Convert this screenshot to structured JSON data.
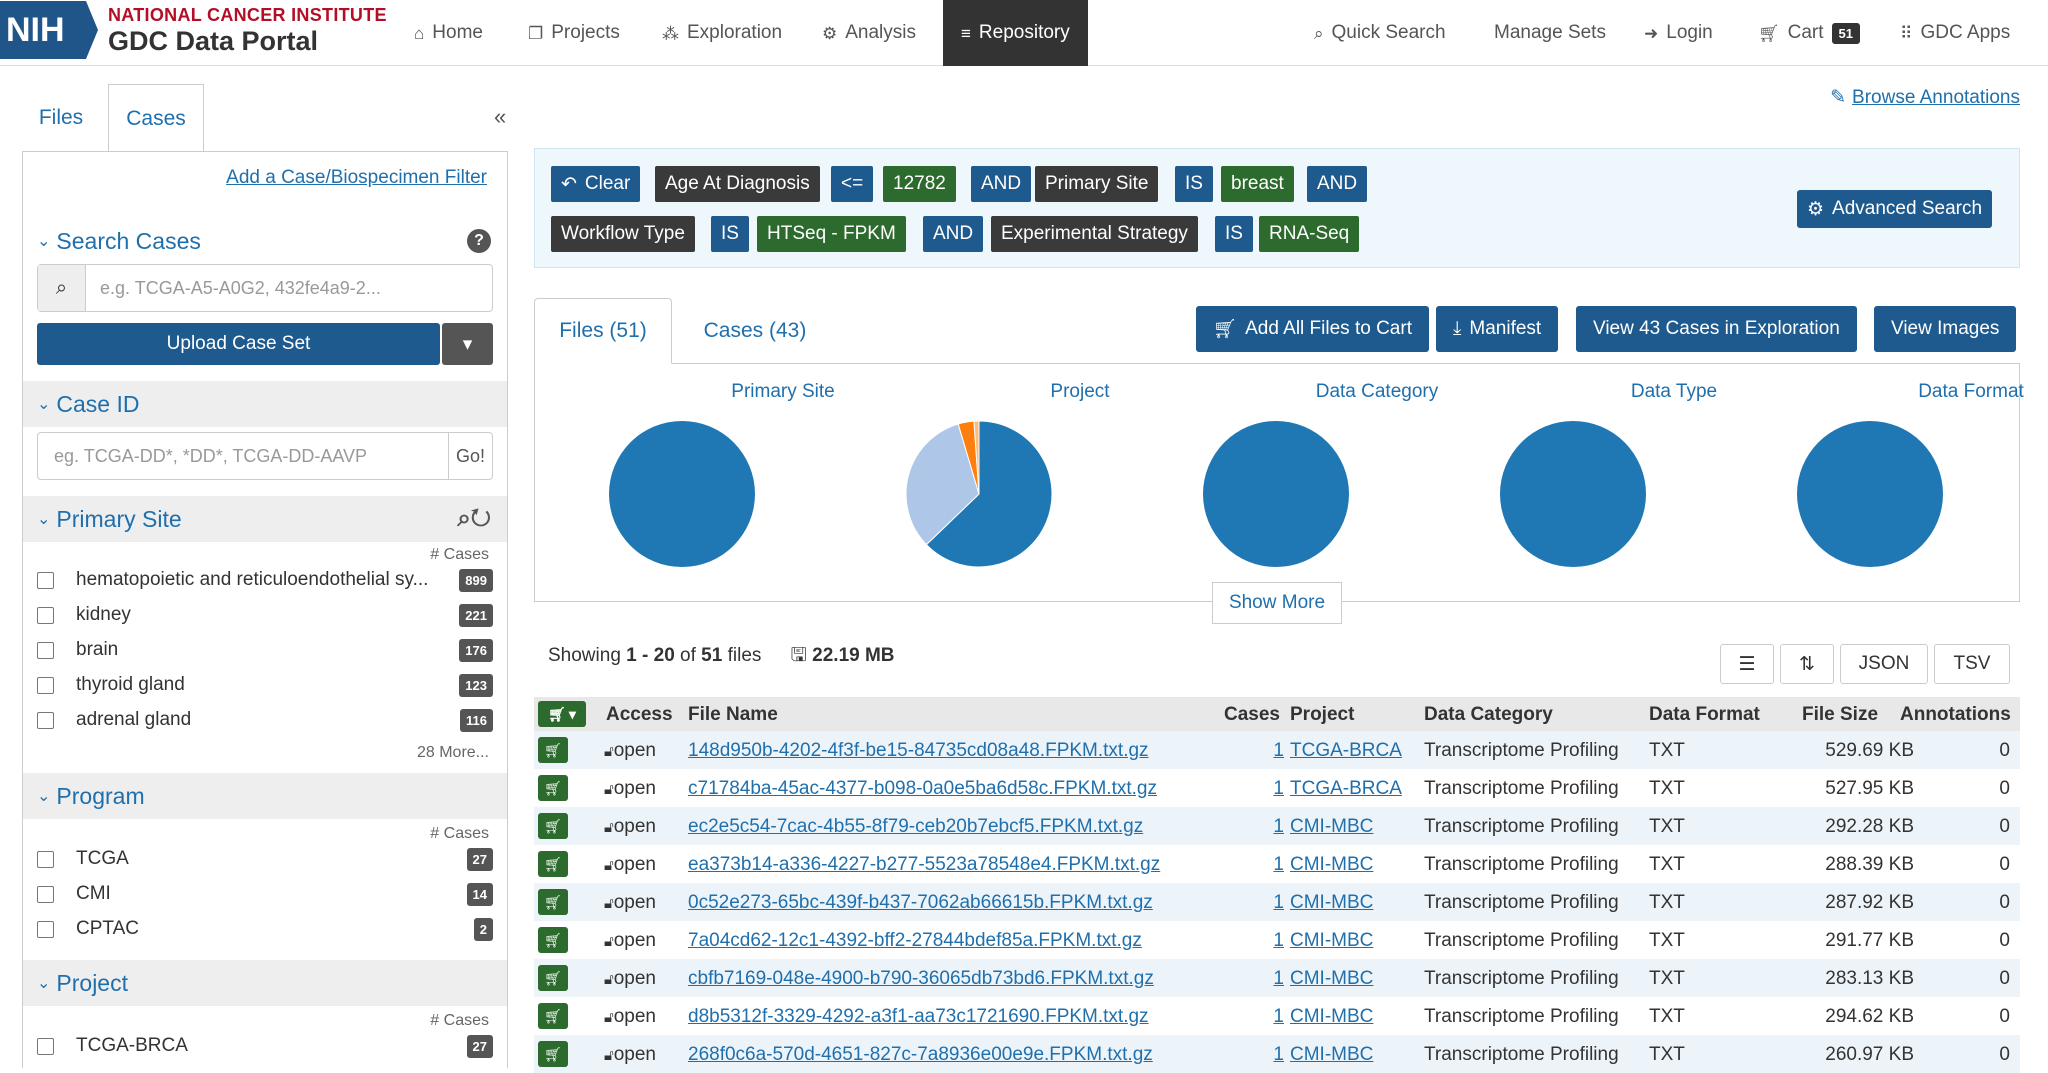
{
  "header": {
    "nci": "NATIONAL CANCER INSTITUTE",
    "gdc": "GDC Data Portal",
    "nih": "NIH",
    "nav": [
      "Home",
      "Projects",
      "Exploration",
      "Analysis",
      "Repository"
    ],
    "right": [
      "Quick Search",
      "Manage Sets",
      "Login",
      "Cart",
      "GDC Apps"
    ],
    "cart_count": "51"
  },
  "sidebar": {
    "tabs": [
      "Files",
      "Cases"
    ],
    "collapse": "«",
    "add_filter": "Add a Case/Biospecimen Filter",
    "search_title": "Search Cases",
    "search_placeholder": "e.g. TCGA-A5-A0G2, 432fe4a9-2...",
    "upload": "Upload Case Set",
    "caseid_title": "Case ID",
    "caseid_placeholder": "eg. TCGA-DD*, *DD*, TCGA-DD-AAVP",
    "go": "Go!",
    "cases_label": "# Cases",
    "primary_site": {
      "title": "Primary Site",
      "items": [
        {
          "label": "hematopoietic and reticuloendothelial sy...",
          "count": "899"
        },
        {
          "label": "kidney",
          "count": "221"
        },
        {
          "label": "brain",
          "count": "176"
        },
        {
          "label": "thyroid gland",
          "count": "123"
        },
        {
          "label": "adrenal gland",
          "count": "116"
        }
      ],
      "more": "28 More..."
    },
    "program": {
      "title": "Program",
      "items": [
        {
          "label": "TCGA",
          "count": "27"
        },
        {
          "label": "CMI",
          "count": "14"
        },
        {
          "label": "CPTAC",
          "count": "2"
        }
      ]
    },
    "project": {
      "title": "Project",
      "items": [
        {
          "label": "TCGA-BRCA",
          "count": "27"
        }
      ]
    }
  },
  "query": {
    "clear": "Clear",
    "row1": [
      "Age At Diagnosis",
      "<=",
      "12782",
      "AND",
      "Primary Site",
      "IS",
      "breast",
      "AND"
    ],
    "row2": [
      "Workflow Type",
      "IS",
      "HTSeq - FPKM",
      "AND",
      "Experimental Strategy",
      "IS",
      "RNA-Seq"
    ],
    "advanced": "Advanced Search"
  },
  "browse": "Browse Annotations",
  "tabs": [
    "Files (51)",
    "Cases (43)"
  ],
  "actions": [
    "Add All Files to Cart",
    "Manifest",
    "View 43 Cases in Exploration",
    "View Images"
  ],
  "charts": [
    "Primary Site",
    "Project",
    "Data Category",
    "Data Type",
    "Data Format"
  ],
  "show_more": "Show More",
  "showing": {
    "prefix": "Showing ",
    "range": "1 - 20",
    "of": " of ",
    "total": "51",
    "suffix": " files",
    "size": "22.19 MB"
  },
  "table_buttons": [
    "JSON",
    "TSV"
  ],
  "columns": [
    "Access",
    "File Name",
    "Cases",
    "Project",
    "Data Category",
    "Data Format",
    "File Size",
    "Annotations"
  ],
  "rows": [
    {
      "access": "open",
      "file": "148d950b-4202-4f3f-be15-84735cd08a48.FPKM.txt.gz",
      "cases": "1",
      "project": "TCGA-BRCA",
      "category": "Transcriptome Profiling",
      "format": "TXT",
      "size": "529.69 KB",
      "ann": "0"
    },
    {
      "access": "open",
      "file": "c71784ba-45ac-4377-b098-0a0e5ba6d58c.FPKM.txt.gz",
      "cases": "1",
      "project": "TCGA-BRCA",
      "category": "Transcriptome Profiling",
      "format": "TXT",
      "size": "527.95 KB",
      "ann": "0"
    },
    {
      "access": "open",
      "file": "ec2e5c54-7cac-4b55-8f79-ceb20b7ebcf5.FPKM.txt.gz",
      "cases": "1",
      "project": "CMI-MBC",
      "category": "Transcriptome Profiling",
      "format": "TXT",
      "size": "292.28 KB",
      "ann": "0"
    },
    {
      "access": "open",
      "file": "ea373b14-a336-4227-b277-5523a78548e4.FPKM.txt.gz",
      "cases": "1",
      "project": "CMI-MBC",
      "category": "Transcriptome Profiling",
      "format": "TXT",
      "size": "288.39 KB",
      "ann": "0"
    },
    {
      "access": "open",
      "file": "0c52e273-65bc-439f-b437-7062ab66615b.FPKM.txt.gz",
      "cases": "1",
      "project": "CMI-MBC",
      "category": "Transcriptome Profiling",
      "format": "TXT",
      "size": "287.92 KB",
      "ann": "0"
    },
    {
      "access": "open",
      "file": "7a04cd62-12c1-4392-bff2-27844bdef85a.FPKM.txt.gz",
      "cases": "1",
      "project": "CMI-MBC",
      "category": "Transcriptome Profiling",
      "format": "TXT",
      "size": "291.77 KB",
      "ann": "0"
    },
    {
      "access": "open",
      "file": "cbfb7169-048e-4900-b790-36065db73bd6.FPKM.txt.gz",
      "cases": "1",
      "project": "CMI-MBC",
      "category": "Transcriptome Profiling",
      "format": "TXT",
      "size": "283.13 KB",
      "ann": "0"
    },
    {
      "access": "open",
      "file": "d8b5312f-3329-4292-a3f1-aa73c1721690.FPKM.txt.gz",
      "cases": "1",
      "project": "CMI-MBC",
      "category": "Transcriptome Profiling",
      "format": "TXT",
      "size": "294.62 KB",
      "ann": "0"
    },
    {
      "access": "open",
      "file": "268f0c6a-570d-4651-827c-7a8936e00e9e.FPKM.txt.gz",
      "cases": "1",
      "project": "CMI-MBC",
      "category": "Transcriptome Profiling",
      "format": "TXT",
      "size": "260.97 KB",
      "ann": "0"
    }
  ],
  "colors": {
    "brand": "#1e5a8e",
    "chart_blue": "#1f77b4",
    "chart_light": "#aec7e8",
    "chart_orange": "#ff7f0e",
    "chart_peach": "#ffbb78"
  },
  "project_pie_fractions": [
    0.628,
    0.326,
    0.035,
    0.011
  ]
}
